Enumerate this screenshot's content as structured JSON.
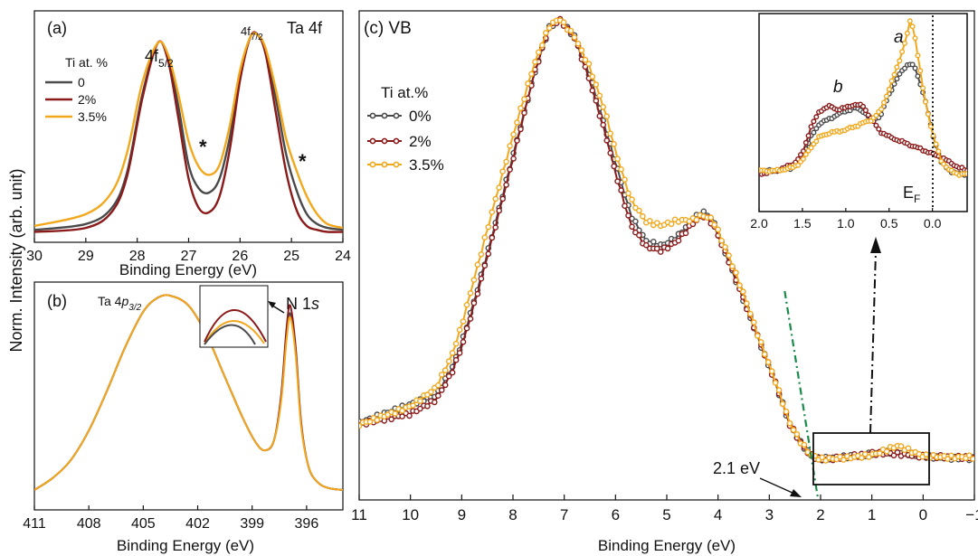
{
  "ylabel": "Norm. Intensity (arb. unit)",
  "colors": {
    "0": "#4a4a4a",
    "2": "#8b1a1a",
    "3.5": "#f2a81d",
    "fit": "#1a8a4a",
    "frame": "#111111"
  },
  "chart_data": [
    {
      "id": "a",
      "type": "line",
      "panel_label": "(a)",
      "title": "Ta 4f",
      "xlabel": "Binding Energy (eV)",
      "xlim": [
        30,
        24
      ],
      "xticks": [
        "30",
        "29",
        "28",
        "27",
        "26",
        "25",
        "24"
      ],
      "peak_labels": [
        {
          "main": "4f",
          "sub": "5/2"
        },
        {
          "main": "4f",
          "sub": "7/2"
        }
      ],
      "markers": [
        "*",
        "*"
      ],
      "legend_title": "Ti at. %",
      "series": [
        {
          "name": "0",
          "color_key": "0",
          "x": [
            30.0,
            29.0,
            28.5,
            28.2,
            27.9,
            27.6,
            27.4,
            27.2,
            27.0,
            26.8,
            26.6,
            26.4,
            26.2,
            26.0,
            25.8,
            25.65,
            25.5,
            25.3,
            25.1,
            24.9,
            24.7,
            24.5,
            24.3,
            24.0
          ],
          "y": [
            0.01,
            0.04,
            0.12,
            0.3,
            0.7,
            0.96,
            0.88,
            0.64,
            0.34,
            0.22,
            0.2,
            0.27,
            0.48,
            0.79,
            0.99,
            1.0,
            0.92,
            0.67,
            0.39,
            0.21,
            0.09,
            0.04,
            0.02,
            0.01
          ]
        },
        {
          "name": "2%",
          "color_key": "2",
          "x": [
            30.0,
            29.0,
            28.5,
            28.2,
            27.9,
            27.6,
            27.4,
            27.2,
            27.0,
            26.8,
            26.6,
            26.4,
            26.2,
            26.0,
            25.8,
            25.65,
            25.5,
            25.3,
            25.1,
            24.9,
            24.7,
            24.5,
            24.3,
            24.0
          ],
          "y": [
            0.0,
            0.02,
            0.1,
            0.28,
            0.68,
            0.96,
            0.87,
            0.58,
            0.27,
            0.12,
            0.1,
            0.18,
            0.42,
            0.77,
            0.99,
            1.0,
            0.9,
            0.6,
            0.3,
            0.11,
            0.03,
            0.01,
            0.0,
            0.0
          ]
        },
        {
          "name": "3.5%",
          "color_key": "3.5",
          "x": [
            30.0,
            29.0,
            28.5,
            28.2,
            27.9,
            27.6,
            27.4,
            27.2,
            27.0,
            26.8,
            26.6,
            26.4,
            26.2,
            26.0,
            25.8,
            25.65,
            25.5,
            25.3,
            25.1,
            24.9,
            24.7,
            24.5,
            24.3,
            24.0
          ],
          "y": [
            0.03,
            0.09,
            0.2,
            0.4,
            0.76,
            0.96,
            0.9,
            0.7,
            0.46,
            0.33,
            0.29,
            0.34,
            0.54,
            0.82,
            0.99,
            1.0,
            0.93,
            0.72,
            0.47,
            0.31,
            0.18,
            0.09,
            0.04,
            0.02
          ]
        }
      ]
    },
    {
      "id": "b",
      "type": "line",
      "panel_label": "(b)",
      "xlabel": "Binding Energy (eV)",
      "xlim": [
        411,
        394
      ],
      "xticks": [
        "411",
        "408",
        "405",
        "402",
        "399",
        "396"
      ],
      "peak_labels": [
        {
          "main": "Ta 4",
          "italic": "p",
          "sub": "3/2"
        },
        {
          "main": "N 1",
          "italic": "s"
        }
      ],
      "series": [
        {
          "name": "0",
          "color_key": "0",
          "x": [
            411.0,
            410.0,
            409.0,
            408.0,
            407.0,
            406.0,
            405.0,
            404.2,
            403.5,
            402.5,
            401.5,
            400.5,
            399.5,
            398.8,
            398.3,
            397.8,
            397.4,
            397.1,
            396.9,
            396.6,
            396.3,
            395.9,
            395.4,
            394.8,
            394.0
          ],
          "y": [
            0.02,
            0.08,
            0.17,
            0.32,
            0.52,
            0.74,
            0.92,
            0.99,
            1.0,
            0.95,
            0.8,
            0.59,
            0.38,
            0.26,
            0.22,
            0.27,
            0.48,
            0.8,
            0.91,
            0.72,
            0.35,
            0.14,
            0.06,
            0.03,
            0.02
          ]
        },
        {
          "name": "2%",
          "color_key": "2",
          "x": [
            411.0,
            410.0,
            409.0,
            408.0,
            407.0,
            406.0,
            405.0,
            404.2,
            403.5,
            402.5,
            401.5,
            400.5,
            399.5,
            398.8,
            398.3,
            397.8,
            397.4,
            397.1,
            396.9,
            396.6,
            396.3,
            395.9,
            395.4,
            394.8,
            394.0
          ],
          "y": [
            0.02,
            0.08,
            0.17,
            0.32,
            0.52,
            0.74,
            0.92,
            0.99,
            1.0,
            0.95,
            0.8,
            0.59,
            0.38,
            0.26,
            0.22,
            0.27,
            0.5,
            0.84,
            0.95,
            0.74,
            0.36,
            0.14,
            0.06,
            0.03,
            0.02
          ]
        },
        {
          "name": "3.5%",
          "color_key": "3.5",
          "x": [
            411.0,
            410.0,
            409.0,
            408.0,
            407.0,
            406.0,
            405.0,
            404.2,
            403.5,
            402.5,
            401.5,
            400.5,
            399.5,
            398.8,
            398.3,
            397.8,
            397.4,
            397.1,
            396.9,
            396.6,
            396.3,
            395.9,
            395.4,
            394.8,
            394.0
          ],
          "y": [
            0.02,
            0.08,
            0.17,
            0.32,
            0.52,
            0.74,
            0.92,
            0.99,
            1.0,
            0.95,
            0.8,
            0.59,
            0.38,
            0.26,
            0.22,
            0.27,
            0.47,
            0.78,
            0.89,
            0.7,
            0.34,
            0.14,
            0.06,
            0.03,
            0.02
          ]
        }
      ]
    },
    {
      "id": "c",
      "type": "line",
      "panel_label": "(c) VB",
      "xlabel": "Binding Energy (eV)",
      "xlim": [
        11,
        -1
      ],
      "xticks": [
        "11",
        "10",
        "9",
        "8",
        "7",
        "6",
        "5",
        "4",
        "3",
        "2",
        "1",
        "0",
        "−1"
      ],
      "legend_title": "Ti at.%",
      "annotation": "2.1 eV",
      "onset": {
        "x": [
          2.7,
          2.1
        ],
        "y": [
          0.38,
          0.0
        ]
      },
      "series": [
        {
          "name": "0%",
          "color_key": "0",
          "x": [
            11.0,
            10.5,
            10.0,
            9.5,
            9.2,
            9.0,
            8.7,
            8.4,
            8.0,
            7.6,
            7.3,
            7.1,
            6.8,
            6.5,
            6.2,
            6.0,
            5.7,
            5.4,
            5.1,
            4.8,
            4.5,
            4.3,
            4.1,
            3.8,
            3.5,
            3.2,
            2.9,
            2.6,
            2.4,
            2.2,
            2.0,
            1.5,
            1.0,
            0.5,
            0.0,
            -0.5,
            -1.0
          ],
          "y": [
            0.08,
            0.1,
            0.12,
            0.14,
            0.2,
            0.26,
            0.38,
            0.51,
            0.69,
            0.87,
            0.98,
            1.0,
            0.96,
            0.87,
            0.75,
            0.67,
            0.55,
            0.49,
            0.48,
            0.5,
            0.54,
            0.56,
            0.54,
            0.45,
            0.36,
            0.27,
            0.18,
            0.08,
            0.04,
            0.01,
            0.0,
            0.003,
            0.008,
            0.012,
            0.002,
            0.0,
            0.0
          ]
        },
        {
          "name": "2%",
          "color_key": "2",
          "x": [
            11.0,
            10.5,
            10.0,
            9.5,
            9.2,
            9.0,
            8.7,
            8.4,
            8.0,
            7.6,
            7.3,
            7.1,
            6.8,
            6.5,
            6.2,
            6.0,
            5.7,
            5.4,
            5.1,
            4.8,
            4.5,
            4.3,
            4.1,
            3.8,
            3.5,
            3.2,
            2.9,
            2.6,
            2.4,
            2.2,
            2.0,
            1.5,
            1.0,
            0.5,
            0.0,
            -0.5,
            -1.0
          ],
          "y": [
            0.08,
            0.09,
            0.1,
            0.13,
            0.19,
            0.25,
            0.37,
            0.5,
            0.68,
            0.87,
            0.98,
            1.0,
            0.96,
            0.86,
            0.74,
            0.65,
            0.53,
            0.48,
            0.47,
            0.49,
            0.53,
            0.55,
            0.53,
            0.45,
            0.36,
            0.27,
            0.18,
            0.08,
            0.04,
            0.01,
            0.0,
            0.005,
            0.012,
            0.008,
            0.002,
            0.0,
            0.0
          ]
        },
        {
          "name": "3.5%",
          "color_key": "3.5",
          "x": [
            11.0,
            10.5,
            10.0,
            9.5,
            9.2,
            9.0,
            8.7,
            8.4,
            8.0,
            7.6,
            7.3,
            7.1,
            6.8,
            6.5,
            6.2,
            6.0,
            5.7,
            5.4,
            5.1,
            4.8,
            4.5,
            4.3,
            4.1,
            3.8,
            3.5,
            3.2,
            2.9,
            2.6,
            2.4,
            2.2,
            2.0,
            1.5,
            1.0,
            0.5,
            0.0,
            -0.5,
            -1.0
          ],
          "y": [
            0.08,
            0.1,
            0.12,
            0.16,
            0.23,
            0.3,
            0.43,
            0.56,
            0.73,
            0.89,
            0.98,
            1.0,
            0.96,
            0.89,
            0.79,
            0.7,
            0.59,
            0.54,
            0.53,
            0.54,
            0.54,
            0.55,
            0.54,
            0.46,
            0.37,
            0.27,
            0.18,
            0.08,
            0.04,
            0.01,
            0.0,
            0.004,
            0.01,
            0.03,
            0.005,
            0.0,
            0.0
          ]
        }
      ]
    },
    {
      "id": "c-inset",
      "type": "line",
      "xlim": [
        2.0,
        -0.4
      ],
      "xticks": [
        "2.0",
        "1.5",
        "1.0",
        "0.5",
        "0.0"
      ],
      "labels": {
        "a": "a",
        "b": "b",
        "ef_main": "E",
        "ef_sub": "F"
      },
      "series": [
        {
          "name": "0%",
          "color_key": "0",
          "x": [
            2.0,
            1.8,
            1.6,
            1.5,
            1.4,
            1.3,
            1.2,
            1.1,
            1.0,
            0.9,
            0.8,
            0.7,
            0.6,
            0.5,
            0.4,
            0.3,
            0.25,
            0.2,
            0.1,
            0.0,
            -0.1,
            -0.2,
            -0.3,
            -0.4
          ],
          "y": [
            0.1,
            0.1,
            0.12,
            0.18,
            0.3,
            0.38,
            0.4,
            0.43,
            0.45,
            0.47,
            0.45,
            0.4,
            0.42,
            0.55,
            0.65,
            0.72,
            0.73,
            0.7,
            0.55,
            0.32,
            0.15,
            0.1,
            0.08,
            0.08
          ]
        },
        {
          "name": "2%",
          "color_key": "2",
          "x": [
            2.0,
            1.8,
            1.6,
            1.5,
            1.4,
            1.3,
            1.2,
            1.1,
            1.0,
            0.9,
            0.8,
            0.7,
            0.6,
            0.5,
            0.4,
            0.3,
            0.25,
            0.2,
            0.1,
            0.0,
            -0.1,
            -0.2,
            -0.3,
            -0.4
          ],
          "y": [
            0.08,
            0.1,
            0.14,
            0.2,
            0.36,
            0.45,
            0.48,
            0.46,
            0.47,
            0.49,
            0.48,
            0.4,
            0.33,
            0.3,
            0.28,
            0.26,
            0.25,
            0.24,
            0.22,
            0.2,
            0.18,
            0.15,
            0.12,
            0.1
          ]
        },
        {
          "name": "3.5%",
          "color_key": "3.5",
          "x": [
            2.0,
            1.8,
            1.6,
            1.5,
            1.4,
            1.3,
            1.2,
            1.1,
            1.0,
            0.9,
            0.8,
            0.7,
            0.6,
            0.5,
            0.4,
            0.3,
            0.25,
            0.2,
            0.1,
            0.0,
            -0.1,
            -0.2,
            -0.3,
            -0.4
          ],
          "y": [
            0.1,
            0.1,
            0.12,
            0.16,
            0.24,
            0.3,
            0.32,
            0.33,
            0.34,
            0.36,
            0.38,
            0.4,
            0.45,
            0.58,
            0.72,
            0.88,
            1.0,
            0.88,
            0.55,
            0.32,
            0.16,
            0.1,
            0.08,
            0.08
          ]
        }
      ]
    }
  ]
}
